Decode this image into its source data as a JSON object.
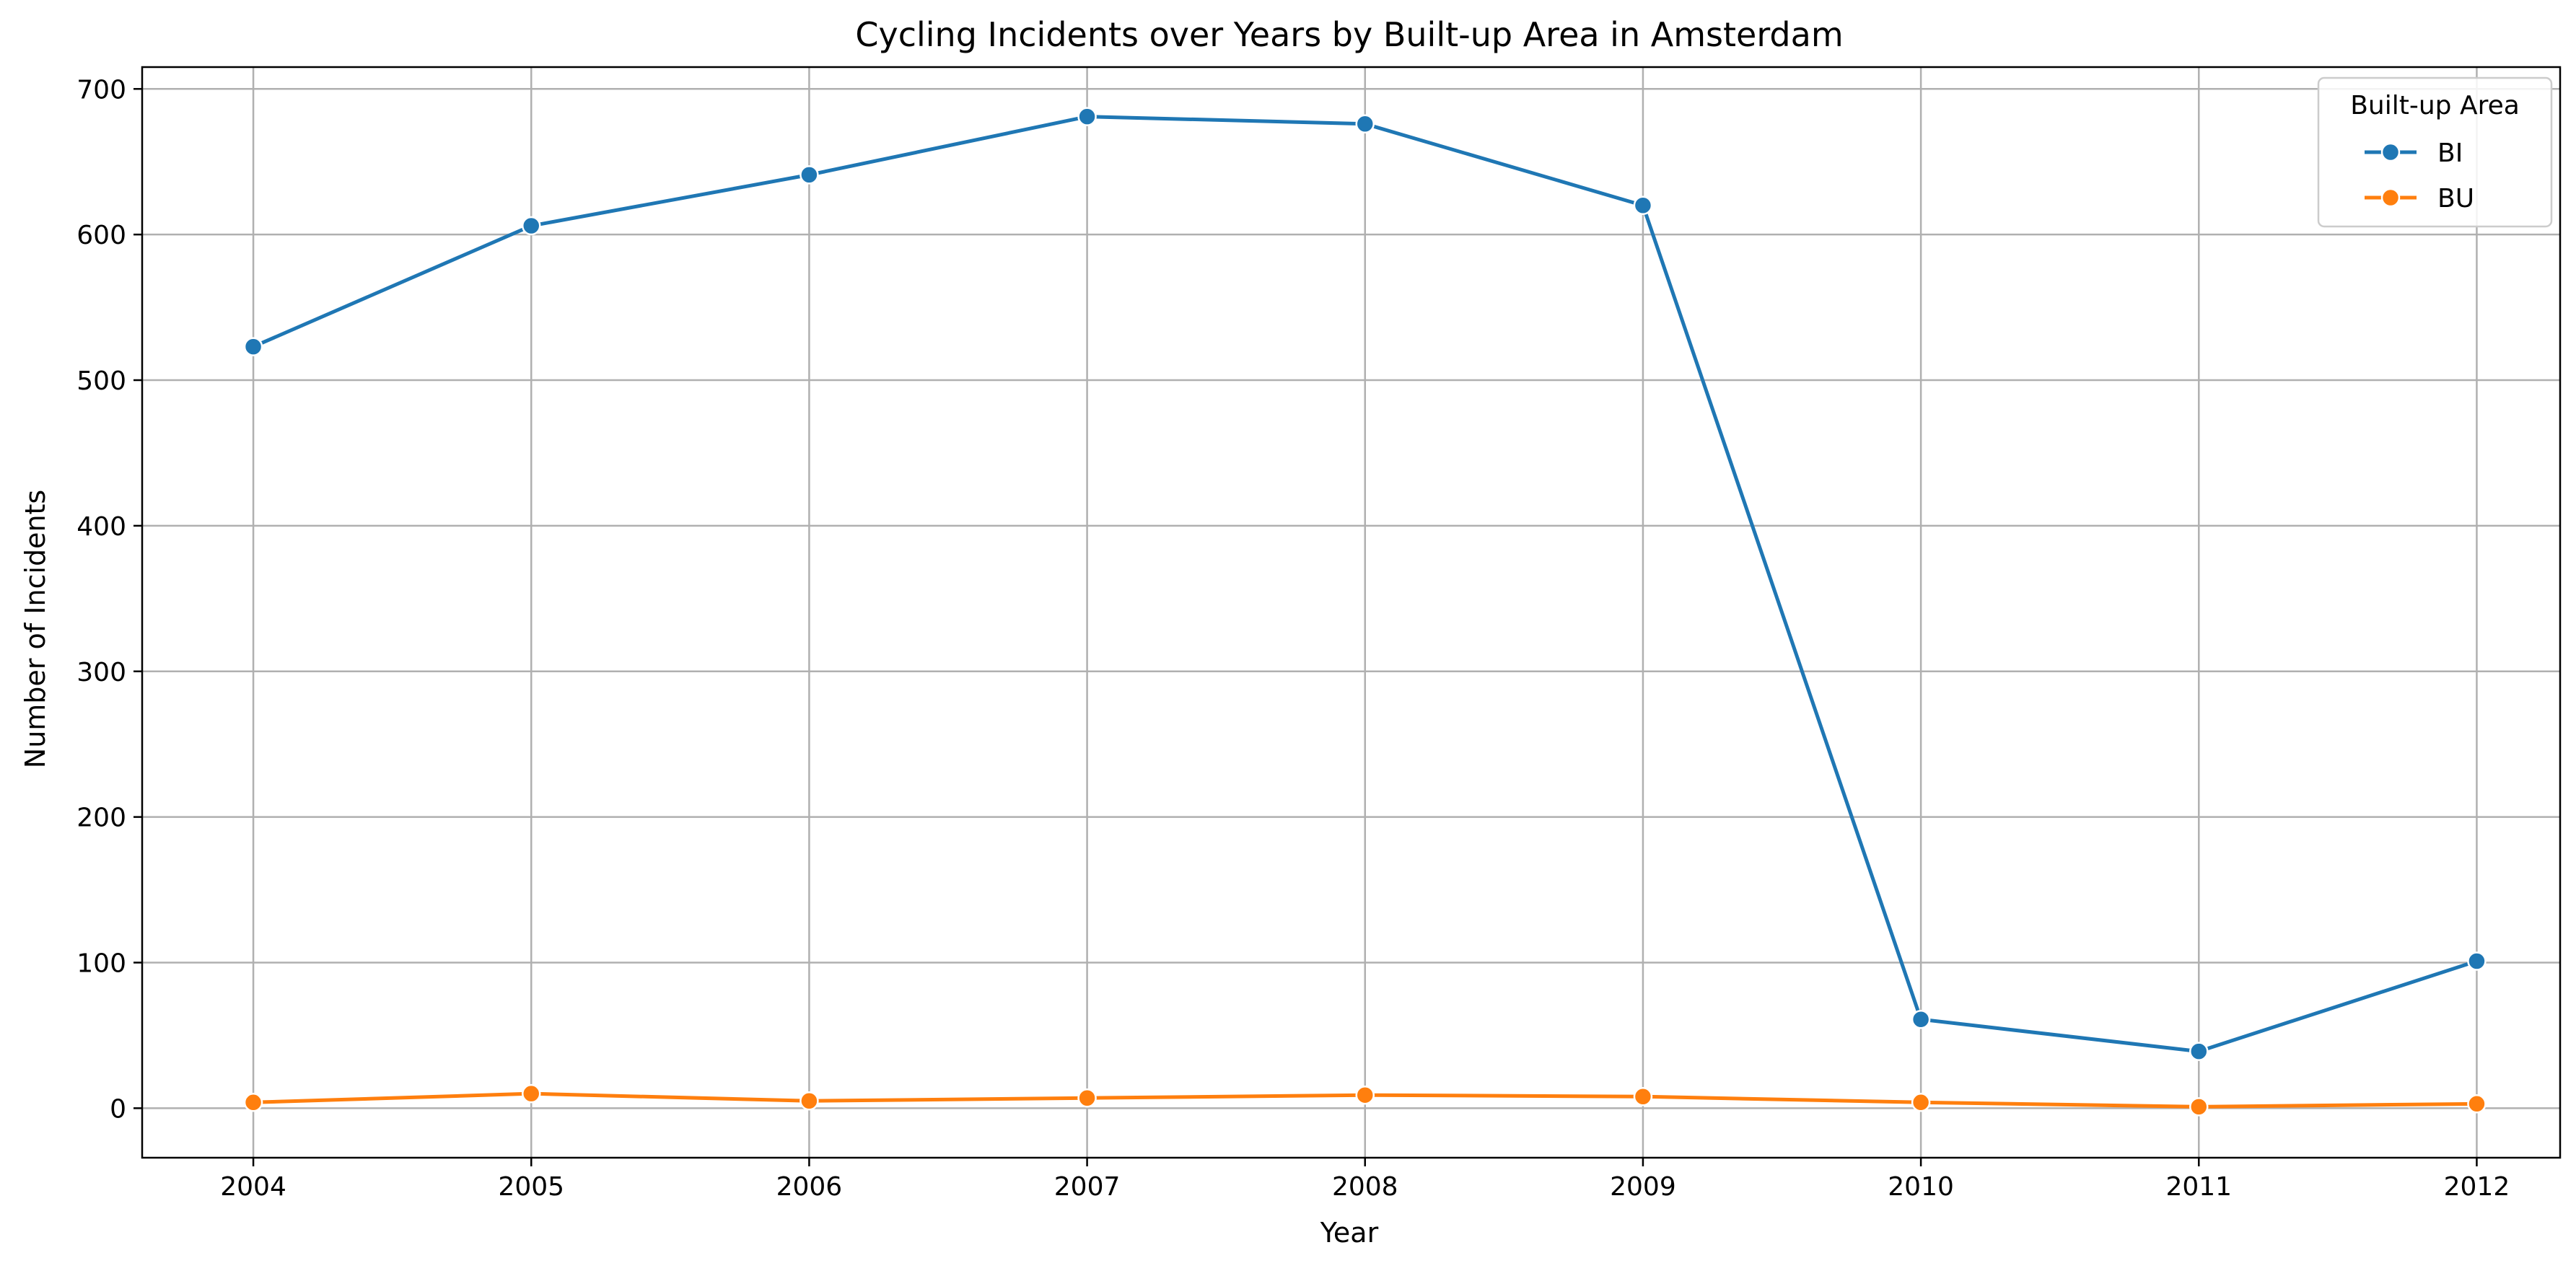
{
  "chart_data": {
    "type": "line",
    "title": "Cycling Incidents over Years by Built-up Area in Amsterdam",
    "xlabel": "Year",
    "ylabel": "Number of Incidents",
    "x": [
      2004,
      2005,
      2006,
      2007,
      2008,
      2009,
      2010,
      2011,
      2012
    ],
    "x_tick_labels": [
      "2004",
      "2005",
      "2006",
      "2007",
      "2008",
      "2009",
      "2010",
      "2011",
      "2012"
    ],
    "y_ticks": [
      0,
      100,
      200,
      300,
      400,
      500,
      600,
      700
    ],
    "y_tick_labels": [
      "0",
      "100",
      "200",
      "300",
      "400",
      "500",
      "600",
      "700"
    ],
    "xlim": [
      2003.6,
      2012.3
    ],
    "ylim": [
      -34,
      715
    ],
    "grid": true,
    "legend": {
      "title": "Built-up Area",
      "placement": "top-right"
    },
    "series": [
      {
        "name": "BI",
        "color": "#1f77b4",
        "values": [
          523,
          606,
          641,
          681,
          676,
          620,
          61,
          39,
          101
        ]
      },
      {
        "name": "BU",
        "color": "#ff7f0e",
        "values": [
          4,
          10,
          5,
          7,
          9,
          8,
          4,
          1,
          3
        ]
      }
    ]
  }
}
